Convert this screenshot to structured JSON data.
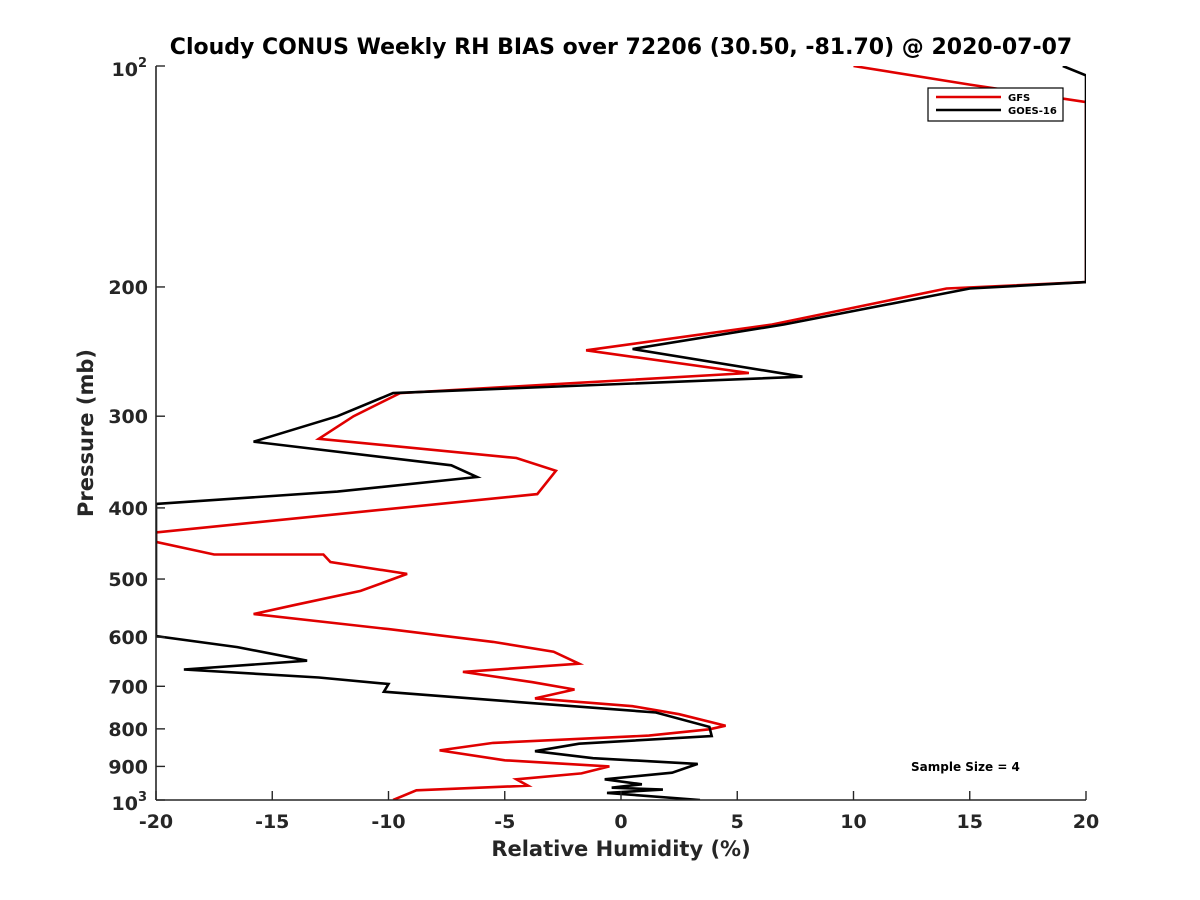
{
  "chart_data": {
    "type": "line",
    "title": "Cloudy CONUS Weekly RH BIAS over 72206 (30.50, -81.70) @ 2020-07-07",
    "xlabel": "Relative Humidity (%)",
    "ylabel": "Pressure (mb)",
    "xlim": [
      -20,
      20
    ],
    "ylim": [
      100,
      1000
    ],
    "yscale": "log",
    "y_reversed": true,
    "xticks": [
      -20,
      -15,
      -10,
      -5,
      0,
      5,
      10,
      15,
      20
    ],
    "xtick_labels": [
      "-20",
      "-15",
      "-10",
      "-5",
      "0",
      "5",
      "10",
      "15",
      "20"
    ],
    "yticks": [
      100,
      200,
      300,
      400,
      500,
      600,
      700,
      800,
      900,
      1000
    ],
    "ytick_labels": [
      {
        "base": "10",
        "exp": "2"
      },
      {
        "base": "200"
      },
      {
        "base": "300"
      },
      {
        "base": "400"
      },
      {
        "base": "500"
      },
      {
        "base": "600"
      },
      {
        "base": "700"
      },
      {
        "base": "800"
      },
      {
        "base": "900"
      },
      {
        "base": "10",
        "exp": "3"
      }
    ],
    "legend": {
      "position": "top-right",
      "entries": [
        "GFS",
        "GOES-16"
      ]
    },
    "annotation": "Sample Size = 4",
    "series": [
      {
        "name": "GFS",
        "color": "#e00000",
        "points": [
          [
            10,
            100
          ],
          [
            15,
            106
          ],
          [
            20,
            112
          ],
          [
            20,
            197
          ],
          [
            14,
            201
          ],
          [
            6.5,
            225
          ],
          [
            -1.5,
            244
          ],
          [
            5.5,
            262
          ],
          [
            -9.5,
            279
          ],
          [
            -11.5,
            300
          ],
          [
            -13,
            322
          ],
          [
            -4.5,
            342
          ],
          [
            -2.8,
            356
          ],
          [
            -3.6,
            383
          ],
          [
            -20,
            432
          ],
          [
            -20,
            445
          ],
          [
            -17.5,
            463
          ],
          [
            -12.8,
            463
          ],
          [
            -12.5,
            474
          ],
          [
            -9.2,
            492
          ],
          [
            -11.2,
            519
          ],
          [
            -14,
            542
          ],
          [
            -15.8,
            558
          ],
          [
            -10,
            585
          ],
          [
            -5.5,
            609
          ],
          [
            -2.9,
            628
          ],
          [
            -1.8,
            652
          ],
          [
            -6.8,
            669
          ],
          [
            -3.8,
            691
          ],
          [
            -2,
            707
          ],
          [
            -3.7,
            727
          ],
          [
            0.5,
            745
          ],
          [
            2.5,
            764
          ],
          [
            4.5,
            792
          ],
          [
            3.8,
            801
          ],
          [
            1.2,
            817
          ],
          [
            -5.5,
            836
          ],
          [
            -7.8,
            856
          ],
          [
            -5,
            883
          ],
          [
            -0.5,
            900
          ],
          [
            -1.7,
            920
          ],
          [
            -4.5,
            937
          ],
          [
            -4,
            956
          ],
          [
            -8.8,
            970
          ],
          [
            -9.8,
            1000
          ]
        ]
      },
      {
        "name": "GOES-16",
        "color": "#000000",
        "points": [
          [
            19,
            100
          ],
          [
            20,
            103
          ],
          [
            20,
            197
          ],
          [
            15,
            201
          ],
          [
            7,
            225
          ],
          [
            0.5,
            243
          ],
          [
            7.8,
            265
          ],
          [
            -9.8,
            279
          ],
          [
            -12.2,
            300
          ],
          [
            -15.8,
            325
          ],
          [
            -7.3,
            350
          ],
          [
            -6.2,
            363
          ],
          [
            -12.2,
            380
          ],
          [
            -20,
            395
          ],
          [
            -20,
            598
          ],
          [
            -16.5,
            619
          ],
          [
            -13.5,
            646
          ],
          [
            -18.8,
            664
          ],
          [
            -13,
            681
          ],
          [
            -10,
            695
          ],
          [
            -10.2,
            712
          ],
          [
            -4.5,
            735
          ],
          [
            1.5,
            760
          ],
          [
            3.8,
            795
          ],
          [
            3.9,
            818
          ],
          [
            -1.8,
            838
          ],
          [
            -3.7,
            858
          ],
          [
            -1.2,
            877
          ],
          [
            3.3,
            893
          ],
          [
            2.2,
            918
          ],
          [
            -0.7,
            937
          ],
          [
            0.9,
            952
          ],
          [
            -0.4,
            962
          ],
          [
            1.8,
            968
          ],
          [
            -0.6,
            978
          ],
          [
            3.4,
            1000
          ]
        ]
      }
    ]
  }
}
